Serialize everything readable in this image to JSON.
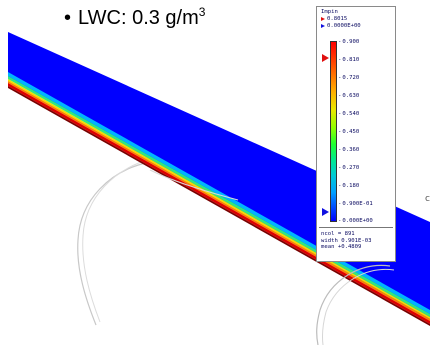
{
  "caption": {
    "bullet": "•",
    "label": "LWC: 0.3 g/m",
    "superscript": "3"
  },
  "legend": {
    "title": "Impin",
    "max_value": "0.8015",
    "min_value": "0.0000E+00",
    "ticks": [
      "0.900",
      "0.810",
      "0.720",
      "0.630",
      "0.540",
      "0.450",
      "0.360",
      "0.270",
      "0.180",
      "0.900E-01",
      "0.000E+00"
    ],
    "stats": {
      "ncol": "ncol =  891",
      "width": "width 0.901E-03",
      "mean": "mean +0.4809"
    }
  },
  "colors": {
    "surface_blue": "#0000ff",
    "surface_red": "#dd0000",
    "surface_band_mid": "#00c8ff",
    "spiral_stroke": "#c8c8c8"
  },
  "annotations": {
    "edge_mark": "c"
  }
}
